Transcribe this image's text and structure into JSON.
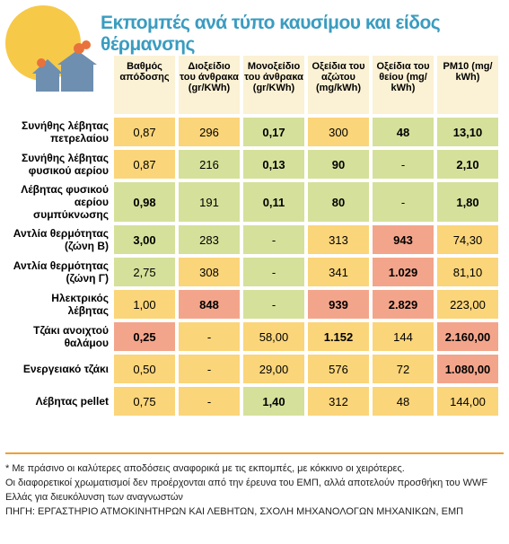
{
  "header": {
    "title": "Εκπομπές ανά τύπο καυσίμου και είδος θέρμανσης"
  },
  "table": {
    "columns": [
      "Βαθμός απόδοσης",
      "Διοξείδιο του άνθρακα (gr/KWh)",
      "Μονοξείδιο του άνθρακα (gr/KWh)",
      "Οξείδια του αζώτου (mg/kWh)",
      "Οξείδια του θείου (mg/ kWh)",
      "PM10 (mg/ kWh)"
    ],
    "rows": [
      {
        "label": "Συνήθης λέβητας πετρελαίου",
        "cells": [
          "0,87",
          "296",
          "0,17",
          "300",
          "48",
          "13,10"
        ]
      },
      {
        "label": "Συνήθης λέβητας φυσικού αερίου",
        "cells": [
          "0,87",
          "216",
          "0,13",
          "90",
          "-",
          "2,10"
        ]
      },
      {
        "label": "Λέβητας φυσικού αερίου συμπύκνωσης",
        "cells": [
          "0,98",
          "191",
          "0,11",
          "80",
          "-",
          "1,80"
        ]
      },
      {
        "label": "Αντλία θερμότητας (ζώνη Β)",
        "cells": [
          "3,00",
          "283",
          "-",
          "313",
          "943",
          "74,30"
        ]
      },
      {
        "label": "Αντλία θερμότητας (ζώνη Γ)",
        "cells": [
          "2,75",
          "308",
          "-",
          "341",
          "1.029",
          "81,10"
        ]
      },
      {
        "label": "Ηλεκτρικός λέβητας",
        "cells": [
          "1,00",
          "848",
          "-",
          "939",
          "2.829",
          "223,00"
        ]
      },
      {
        "label": "Τζάκι ανοιχτού θαλάμου",
        "cells": [
          "0,25",
          "-",
          "58,00",
          "1.152",
          "144",
          "2.160,00"
        ]
      },
      {
        "label": "Ενεργειακό τζάκι",
        "cells": [
          "0,50",
          "-",
          "29,00",
          "576",
          "72",
          "1.080,00"
        ]
      },
      {
        "label": "Λέβητας pellet",
        "cells": [
          "0,75",
          "-",
          "1,40",
          "312",
          "48",
          "144,00"
        ]
      }
    ]
  },
  "notes": [
    "* Με πράσινο οι καλύτερες αποδόσεις αναφορικά με τις εκπομπές, με κόκκινο οι χειρότερες.",
    "Οι διαφορετικοί χρωματισμοί δεν προέρχονται από την έρευνα του ΕΜΠ, αλλά αποτελούν προσθήκη του WWF Ελλάς για διευκόλυνση των αναγνωστών",
    "ΠΗΓΗ: ΕΡΓΑΣΤΗΡΙΟ ΑΤΜΟΚΙΝΗΤΗΡΩΝ ΚΑΙ ΛΕΒΗΤΩΝ, ΣΧΟΛΗ ΜΗΧΑΝΟΛΟΓΩΝ ΜΗΧΑΝΙΚΩΝ, ΕΜΠ"
  ]
}
